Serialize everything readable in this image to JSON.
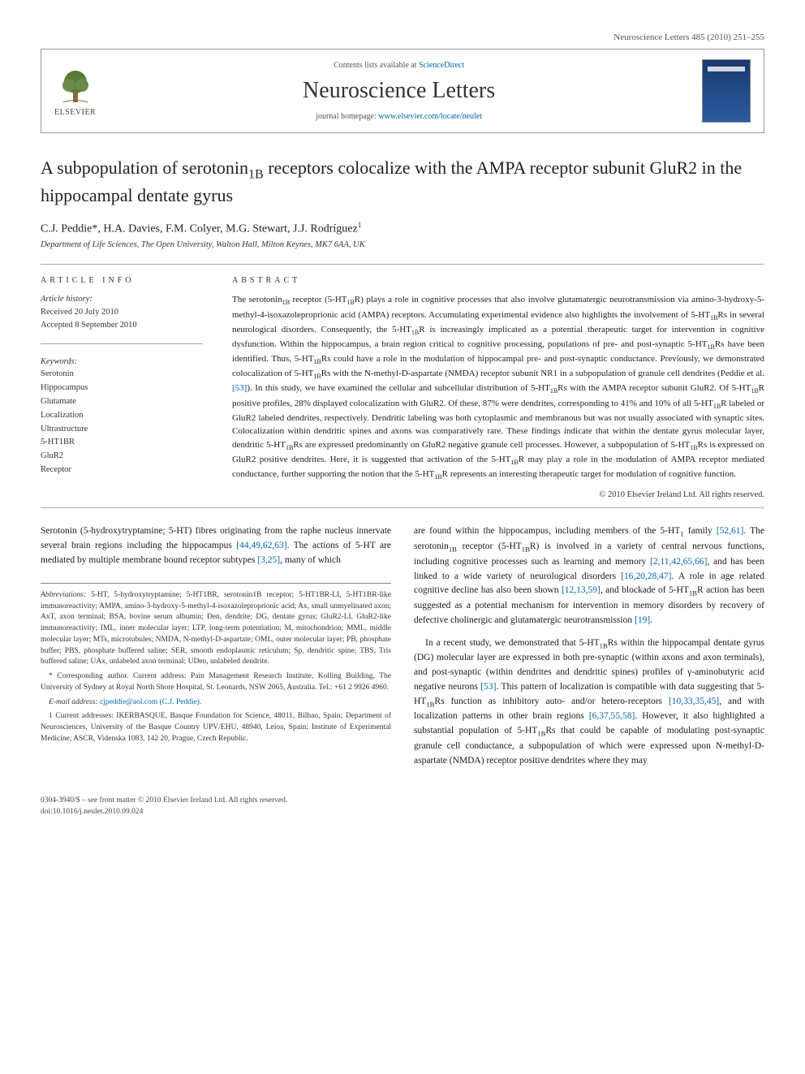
{
  "header": {
    "citation": "Neuroscience Letters 485 (2010) 251–255"
  },
  "masthead": {
    "publisher": "ELSEVIER",
    "contents_prefix": "Contents lists available at ",
    "contents_link": "ScienceDirect",
    "journal_title": "Neuroscience Letters",
    "homepage_prefix": "journal homepage: ",
    "homepage_url": "www.elsevier.com/locate/neulet"
  },
  "article": {
    "title_pre": "A subpopulation of serotonin",
    "title_sub": "1B",
    "title_post": " receptors colocalize with the AMPA receptor subunit GluR2 in the hippocampal dentate gyrus",
    "authors": "C.J. Peddie*, H.A. Davies, F.M. Colyer, M.G. Stewart, J.J. Rodríguez",
    "author_sup": "1",
    "affiliation": "Department of Life Sciences, The Open University, Walton Hall, Milton Keynes, MK7 6AA, UK"
  },
  "info": {
    "heading": "article info",
    "history_label": "Article history:",
    "received": "Received 20 July 2010",
    "accepted": "Accepted 8 September 2010",
    "keywords_label": "Keywords:",
    "keywords": [
      "Serotonin",
      "Hippocampus",
      "Glutamate",
      "Localization",
      "Ultrastructure",
      "5-HT1BR",
      "GluR2",
      "Receptor"
    ]
  },
  "abstract": {
    "heading": "abstract",
    "text_parts": [
      "The serotonin",
      "1B",
      " receptor (5-HT",
      "1B",
      "R) plays a role in cognitive processes that also involve glutamatergic neurotransmission via amino-3-hydroxy-5-methyl-4-isoxazoleproprionic acid (AMPA) receptors. Accumulating experimental evidence also highlights the involvement of 5-HT",
      "1B",
      "Rs in several neurological disorders. Consequently, the 5-HT",
      "1B",
      "R is increasingly implicated as a potential therapeutic target for intervention in cognitive dysfunction. Within the hippocampus, a brain region critical to cognitive processing, populations of pre- and post-synaptic 5-HT",
      "1B",
      "Rs have been identified. Thus, 5-HT",
      "1B",
      "Rs could have a role in the modulation of hippocampal pre- and post-synaptic conductance. Previously, we demonstrated colocalization of 5-HT",
      "1B",
      "Rs with the N-methyl-D-aspartate (NMDA) receptor subunit NR1 in a subpopulation of granule cell dendrites (Peddie et al. ",
      "[53]",
      "). In this study, we have examined the cellular and subcellular distribution of 5-HT",
      "1B",
      "Rs with the AMPA receptor subunit GluR2. Of 5-HT",
      "1B",
      "R positive profiles, 28% displayed colocalization with GluR2. Of these, 87% were dendrites, corresponding to 41% and 10% of all 5-HT",
      "1B",
      "R labeled or GluR2 labeled dendrites, respectively. Dendritic labeling was both cytoplasmic and membranous but was not usually associated with synaptic sites. Colocalization within dendritic spines and axons was comparatively rare. These findings indicate that within the dentate gyrus molecular layer, dendritic 5-HT",
      "1B",
      "Rs are expressed predominantly on GluR2 negative granule cell processes. However, a subpopulation of 5-HT",
      "1B",
      "Rs is expressed on GluR2 positive dendrites. Here, it is suggested that activation of the 5-HT",
      "1B",
      "R may play a role in the modulation of AMPA receptor mediated conductance, further supporting the notion that the 5-HT",
      "1B",
      "R represents an interesting therapeutic target for modulation of cognitive function."
    ],
    "copyright": "© 2010 Elsevier Ireland Ltd. All rights reserved."
  },
  "body": {
    "col1_p1_parts": [
      "Serotonin (5-hydroxytryptamine; 5-HT) fibres originating from the raphe nucleus innervate several brain regions including the hippocampus ",
      "[44,49,62,63]",
      ". The actions of 5-HT are mediated by multiple membrane bound receptor subtypes ",
      "[3,25]",
      ", many of which"
    ],
    "col2_p1_parts": [
      "are found within the hippocampus, including members of the 5-HT",
      "1",
      " family ",
      "[52,61]",
      ". The serotonin",
      "1B",
      " receptor (5-HT",
      "1B",
      "R) is involved in a variety of central nervous functions, including cognitive processes such as learning and memory ",
      "[2,11,42,65,66]",
      ", and has been linked to a wide variety of neurological disorders ",
      "[16,20,28,47]",
      ". A role in age related cognitive decline has also been shown ",
      "[12,13,59]",
      ", and blockade of 5-HT",
      "1B",
      "R action has been suggested as a potential mechanism for intervention in memory disorders by recovery of defective cholinergic and glutamatergic neurotransmission ",
      "[19]",
      "."
    ],
    "col2_p2_parts": [
      "In a recent study, we demonstrated that 5-HT",
      "1B",
      "Rs within the hippocampal dentate gyrus (DG) molecular layer are expressed in both pre-synaptic (within axons and axon terminals), and post-synaptic (within dendrites and dendritic spines) profiles of γ-aminobutyric acid negative neurons ",
      "[53]",
      ". This pattern of localization is compatible with data suggesting that 5-HT",
      "1B",
      "Rs function as inhibitory auto- and/or hetero-receptors ",
      "[10,33,35,45]",
      ", and with localization patterns in other brain regions ",
      "[6,37,55,58]",
      ". However, it also highlighted a substantial population of 5-HT",
      "1B",
      "Rs that could be capable of modulating post-synaptic granule cell conductance, a subpopulation of which were expressed upon N-methyl-D-aspartate (NMDA) receptor positive dendrites where they may"
    ]
  },
  "footnotes": {
    "abbrev_label": "Abbreviations:",
    "abbrev_text": " 5-HT, 5-hydroxytryptamine; 5-HT1BR, serotonin1B receptor; 5-HT1BR-LI, 5-HT1BR-like immunoreactivity; AMPA, amino-3-hydroxy-5-methyl-4-isoxazoleproprionic acid; Ax, small unmyelinated axon; AxT, axon terminal; BSA, bovine serum albumin; Den, dendrite; DG, dentate gyrus; GluR2-LI, GluR2-like immunoreactivity; IML, inner molecular layer; LTP, long-term potentiation; M, mitochondrion; MML, middle molecular layer; MTs, microtubules; NMDA, N-methyl-D-aspartate; OML, outer molecular layer; PB, phosphate buffer; PBS, phosphate buffered saline; SER, smooth endoplasmic reticulum; Sp, dendritic spine; TBS, Tris buffered saline; UAx, unlabeled axon terminal; UDen, unlabeled dendrite.",
    "corresponding": "* Corresponding author. Current address: Pain Management Research Institute, Kolling Building, The University of Sydney at Royal North Shore Hospital, St. Leonards, NSW 2065, Australia. Tel.: +61 2 9926 4960.",
    "email_label": "E-mail address:",
    "email": " cjpeddie@aol.com (C.J. Peddie).",
    "note1": "1 Current addresses: IKERBASQUE, Basque Foundation for Science, 48011, Bilbao, Spain; Department of Neurosciences, University of the Basque Country UPV/EHU, 48940, Leioa, Spain; Institute of Experimental Medicine, ASCR, Videnska 1083, 142 20, Prague, Czech Republic."
  },
  "footer": {
    "line1": "0304-3940/$ – see front matter © 2010 Elsevier Ireland Ltd. All rights reserved.",
    "line2": "doi:10.1016/j.neulet.2010.09.024"
  },
  "colors": {
    "link": "#0066aa",
    "text": "#1a1a1a",
    "border": "#999999",
    "cover_top": "#1a3a6e",
    "cover_bottom": "#2a5aa0"
  }
}
